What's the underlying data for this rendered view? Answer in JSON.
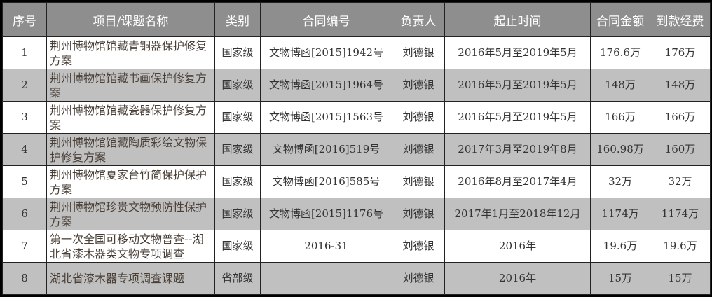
{
  "headers": [
    "序号",
    "项目/课题名称",
    "类别",
    "合同编号",
    "负责人",
    "起止时间",
    "合同金额",
    "到款经费"
  ],
  "rows": [
    [
      "1",
      "荆州博物馆馆藏青铜器保护修复方案",
      "国家级",
      "文物博函[2015]1942号",
      "刘德银",
      "2016年5月至2019年5月",
      "176.6万",
      "176万"
    ],
    [
      "2",
      "荆州博物馆馆藏书画保护修复方案",
      "国家级",
      "文物博函[2015]1964号",
      "刘德银",
      "2016年5月至2019年5月",
      "148万",
      "148万"
    ],
    [
      "3",
      "荆州博物馆馆藏瓷器保护修复方案",
      "国家级",
      "文物博函[2015]1563号",
      "刘德银",
      "2016年5月至2019年5月",
      "166万",
      "166万"
    ],
    [
      "4",
      "荆州博物馆馆藏陶质彩绘文物保护修复方案",
      "国家级",
      "文物博函[2016]519号",
      "刘德银",
      "2017年3月至2019年8月",
      "160.98万",
      "160万"
    ],
    [
      "5",
      "荆州博物馆夏家台竹简保护保护方案",
      "国家级",
      "文物博函[2016]585号",
      "刘德银",
      "2016年8月至2017年4月",
      "32万",
      "32万"
    ],
    [
      "6",
      "荆州博物馆珍贵文物预防性保护方案",
      "国家级",
      "文物博函[2015]1176号",
      "刘德银",
      "2017年1月至2018年12月",
      "1174万",
      "1174万"
    ],
    [
      "7",
      "第一次全国可移动文物普查--湖北省漆木器类文物专项调查",
      "国家级",
      "2016-31",
      "刘德银",
      "2016年",
      "19.6万",
      "19.6万"
    ],
    [
      "8",
      "湖北省漆木器专项调查课题",
      "省部级",
      "",
      "刘德银",
      "2016年",
      "15万",
      "15万"
    ]
  ]
}
